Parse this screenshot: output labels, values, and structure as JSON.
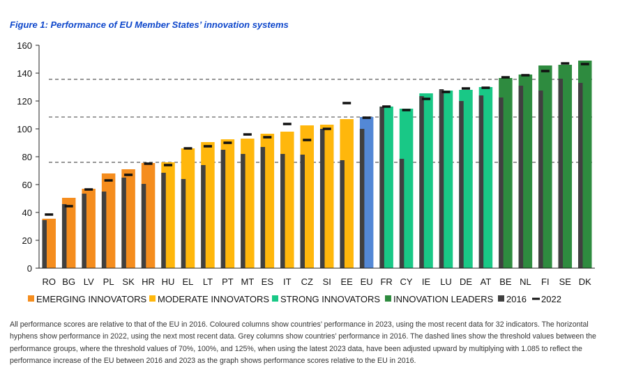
{
  "chart_data": {
    "type": "bar",
    "title": "Figure 1: Performance of EU Member States’ innovation systems",
    "xlabel": "",
    "ylabel": "",
    "ylim": [
      0,
      160
    ],
    "yticks": [
      0,
      20,
      40,
      60,
      80,
      100,
      120,
      140,
      160
    ],
    "categories": [
      "RO",
      "BG",
      "LV",
      "PL",
      "SK",
      "HR",
      "HU",
      "EL",
      "LT",
      "PT",
      "MT",
      "ES",
      "IT",
      "CZ",
      "SI",
      "EE",
      "EU",
      "FR",
      "CY",
      "IE",
      "LU",
      "DE",
      "AT",
      "BE",
      "NL",
      "FI",
      "SE",
      "DK"
    ],
    "groups": [
      "emerging",
      "emerging",
      "emerging",
      "emerging",
      "emerging",
      "emerging",
      "moderate",
      "moderate",
      "moderate",
      "moderate",
      "moderate",
      "moderate",
      "moderate",
      "moderate",
      "moderate",
      "moderate",
      "eu",
      "strong",
      "strong",
      "strong",
      "strong",
      "strong",
      "strong",
      "leader",
      "leader",
      "leader",
      "leader",
      "leader"
    ],
    "series": [
      {
        "name": "2023",
        "values": [
          35.5,
          50.5,
          57,
          68,
          71,
          75.5,
          76,
          86,
          90.5,
          92.5,
          93,
          96.5,
          98,
          102.5,
          103,
          107,
          108.5,
          116,
          114.5,
          125.5,
          127.5,
          128,
          130,
          136.5,
          139,
          145.5,
          146,
          149
        ]
      },
      {
        "name": "2016",
        "values": [
          34.5,
          46,
          53.5,
          55,
          65,
          60.5,
          68.5,
          64,
          74,
          85,
          82,
          87,
          82,
          81.5,
          100,
          77.5,
          100,
          116,
          78.5,
          123.5,
          128.5,
          120,
          124,
          122.5,
          131,
          127.5,
          136,
          133
        ]
      },
      {
        "name": "2022",
        "values": [
          38.5,
          44.5,
          56.5,
          63,
          67,
          75,
          74,
          86,
          87.5,
          90,
          96,
          94,
          103.5,
          92,
          100,
          118.5,
          108,
          116,
          113.5,
          121.5,
          126.5,
          129,
          129.5,
          137,
          138.5,
          141.5,
          147,
          146.5
        ]
      }
    ],
    "thresholds": [
      75.95,
      108.5,
      135.6
    ],
    "grid": false,
    "legend_position": "bottom",
    "legend": [
      {
        "label": "EMERGING INNOVATORS",
        "kind": "swatch",
        "color": "#f58d1e"
      },
      {
        "label": "MODERATE INNOVATORS",
        "kind": "swatch",
        "color": "#ffb70c"
      },
      {
        "label": "STRONG INNOVATORS",
        "kind": "swatch",
        "color": "#19c886"
      },
      {
        "label": "INNOVATION LEADERS",
        "kind": "swatch",
        "color": "#2e8b3f"
      },
      {
        "label": "2016",
        "kind": "swatch",
        "color": "#404040"
      },
      {
        "label": "2022",
        "kind": "dash",
        "color": "#111111"
      }
    ],
    "colors": {
      "emerging": "#f58d1e",
      "moderate": "#ffb70c",
      "eu": "#5388d6",
      "strong": "#19c886",
      "leader": "#2e8b3f",
      "y2016": "#404040",
      "y2022": "#111111",
      "threshold": "#7f7f7f"
    }
  },
  "note": "All performance scores are relative to that of the EU in 2016. Coloured columns show countries’ performance in 2023, using the most recent data for 32 indicators. The horizontal hyphens show performance in 2022, using the next most recent data. Grey columns show countries’ performance in 2016. The dashed lines show the threshold values between the performance groups, where the threshold values of 70%, 100%, and 125%, when using the latest 2023 data, have been adjusted upward by multiplying with 1.085 to reflect the performance increase of the EU between 2016 and 2023 as the graph shows performance scores relative to the EU in 2016."
}
